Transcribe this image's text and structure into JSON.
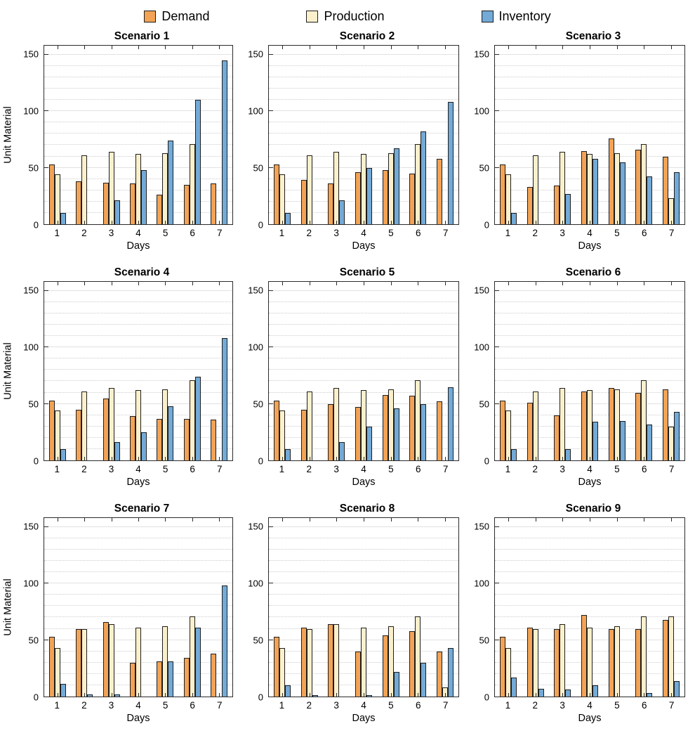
{
  "legend": {
    "items": [
      {
        "label": "Demand",
        "color": "#F2A356"
      },
      {
        "label": "Production",
        "color": "#FAF0CC"
      },
      {
        "label": "Inventory",
        "color": "#73AAD7"
      }
    ]
  },
  "style_colors": {
    "bar_border": "#1e1e1e",
    "axis_border": "#2b2b2b",
    "major_grid": "#e2e2e2",
    "minor_grid": "#cdcdcd"
  },
  "chart_data": [
    {
      "type": "bar",
      "title": "Scenario 1",
      "xlabel": "Days",
      "ylabel": "Unit Material",
      "categories": [
        "1",
        "2",
        "3",
        "4",
        "5",
        "6",
        "7"
      ],
      "yticks": [
        0,
        50,
        100,
        150
      ],
      "ylim": [
        0,
        158
      ],
      "series": [
        {
          "name": "Demand",
          "values": [
            53,
            38,
            37,
            36,
            26,
            35,
            36
          ]
        },
        {
          "name": "Production",
          "values": [
            44,
            61,
            64,
            62,
            63,
            71,
            0
          ]
        },
        {
          "name": "Inventory",
          "values": [
            10,
            0,
            21,
            48,
            74,
            110,
            145
          ]
        }
      ]
    },
    {
      "type": "bar",
      "title": "Scenario 2",
      "xlabel": "Days",
      "ylabel": "",
      "categories": [
        "1",
        "2",
        "3",
        "4",
        "5",
        "6",
        "7"
      ],
      "yticks": [
        0,
        50,
        100,
        150
      ],
      "ylim": [
        0,
        158
      ],
      "series": [
        {
          "name": "Demand",
          "values": [
            53,
            39,
            36,
            46,
            48,
            45,
            58
          ]
        },
        {
          "name": "Production",
          "values": [
            44,
            61,
            64,
            62,
            63,
            71,
            0
          ]
        },
        {
          "name": "Inventory",
          "values": [
            10,
            0,
            21,
            50,
            67,
            82,
            108
          ]
        }
      ]
    },
    {
      "type": "bar",
      "title": "Scenario 3",
      "xlabel": "Days",
      "ylabel": "",
      "categories": [
        "1",
        "2",
        "3",
        "4",
        "5",
        "6",
        "7"
      ],
      "yticks": [
        0,
        50,
        100,
        150
      ],
      "ylim": [
        0,
        158
      ],
      "series": [
        {
          "name": "Demand",
          "values": [
            53,
            33,
            34,
            65,
            76,
            66,
            60
          ]
        },
        {
          "name": "Production",
          "values": [
            44,
            61,
            64,
            62,
            63,
            71,
            23
          ]
        },
        {
          "name": "Inventory",
          "values": [
            10,
            0,
            27,
            58,
            55,
            42,
            46
          ]
        }
      ]
    },
    {
      "type": "bar",
      "title": "Scenario 4",
      "xlabel": "Days",
      "ylabel": "Unit Material",
      "categories": [
        "1",
        "2",
        "3",
        "4",
        "5",
        "6",
        "7"
      ],
      "yticks": [
        0,
        50,
        100,
        150
      ],
      "ylim": [
        0,
        158
      ],
      "series": [
        {
          "name": "Demand",
          "values": [
            53,
            45,
            55,
            39,
            37,
            37,
            36
          ]
        },
        {
          "name": "Production",
          "values": [
            44,
            61,
            64,
            62,
            63,
            71,
            0
          ]
        },
        {
          "name": "Inventory",
          "values": [
            10,
            0,
            16,
            25,
            48,
            74,
            108
          ]
        }
      ]
    },
    {
      "type": "bar",
      "title": "Scenario 5",
      "xlabel": "Days",
      "ylabel": "",
      "categories": [
        "1",
        "2",
        "3",
        "4",
        "5",
        "6",
        "7"
      ],
      "yticks": [
        0,
        50,
        100,
        150
      ],
      "ylim": [
        0,
        158
      ],
      "series": [
        {
          "name": "Demand",
          "values": [
            53,
            45,
            50,
            47,
            58,
            57,
            52
          ]
        },
        {
          "name": "Production",
          "values": [
            44,
            61,
            64,
            62,
            63,
            71,
            0
          ]
        },
        {
          "name": "Inventory",
          "values": [
            10,
            0,
            16,
            30,
            46,
            50,
            65
          ]
        }
      ]
    },
    {
      "type": "bar",
      "title": "Scenario 6",
      "xlabel": "Days",
      "ylabel": "",
      "categories": [
        "1",
        "2",
        "3",
        "4",
        "5",
        "6",
        "7"
      ],
      "yticks": [
        0,
        50,
        100,
        150
      ],
      "ylim": [
        0,
        158
      ],
      "series": [
        {
          "name": "Demand",
          "values": [
            53,
            51,
            40,
            61,
            64,
            60,
            63
          ]
        },
        {
          "name": "Production",
          "values": [
            44,
            61,
            64,
            62,
            63,
            71,
            30
          ]
        },
        {
          "name": "Inventory",
          "values": [
            10,
            0,
            10,
            34,
            35,
            32,
            43
          ]
        }
      ]
    },
    {
      "type": "bar",
      "title": "Scenario 7",
      "xlabel": "Days",
      "ylabel": "Unit Material",
      "categories": [
        "1",
        "2",
        "3",
        "4",
        "5",
        "6",
        "7"
      ],
      "yticks": [
        0,
        50,
        100,
        150
      ],
      "ylim": [
        0,
        158
      ],
      "series": [
        {
          "name": "Demand",
          "values": [
            53,
            60,
            66,
            30,
            31,
            34,
            38
          ]
        },
        {
          "name": "Production",
          "values": [
            43,
            60,
            64,
            61,
            62,
            71,
            0
          ]
        },
        {
          "name": "Inventory",
          "values": [
            11,
            2,
            2,
            0,
            31,
            61,
            98
          ]
        }
      ]
    },
    {
      "type": "bar",
      "title": "Scenario 8",
      "xlabel": "Days",
      "ylabel": "",
      "categories": [
        "1",
        "2",
        "3",
        "4",
        "5",
        "6",
        "7"
      ],
      "yticks": [
        0,
        50,
        100,
        150
      ],
      "ylim": [
        0,
        158
      ],
      "series": [
        {
          "name": "Demand",
          "values": [
            53,
            61,
            64,
            40,
            54,
            58,
            40
          ]
        },
        {
          "name": "Production",
          "values": [
            43,
            60,
            64,
            61,
            62,
            71,
            8
          ]
        },
        {
          "name": "Inventory",
          "values": [
            10,
            1,
            0,
            1,
            22,
            30,
            43
          ]
        }
      ]
    },
    {
      "type": "bar",
      "title": "Scenario 9",
      "xlabel": "Days",
      "ylabel": "",
      "categories": [
        "1",
        "2",
        "3",
        "4",
        "5",
        "6",
        "7"
      ],
      "yticks": [
        0,
        50,
        100,
        150
      ],
      "ylim": [
        0,
        158
      ],
      "series": [
        {
          "name": "Demand",
          "values": [
            53,
            61,
            60,
            72,
            60,
            60,
            68
          ]
        },
        {
          "name": "Production",
          "values": [
            43,
            60,
            64,
            61,
            62,
            71,
            71
          ]
        },
        {
          "name": "Inventory",
          "values": [
            17,
            7,
            6,
            10,
            0,
            3,
            14
          ]
        }
      ]
    }
  ]
}
